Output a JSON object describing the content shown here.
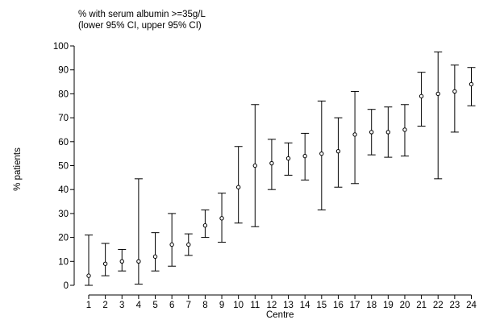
{
  "chart_data": {
    "type": "scatter",
    "title": "% with serum albumin >=35g/L",
    "subtitle": "(lower 95% CI, upper 95% CI)",
    "xlabel": "Centre",
    "ylabel": "% patients",
    "ylim": [
      0,
      100
    ],
    "yticks": [
      0,
      10,
      20,
      30,
      40,
      50,
      60,
      70,
      80,
      90,
      100
    ],
    "x": [
      "1",
      "2",
      "3",
      "4",
      "5",
      "6",
      "7",
      "8",
      "9",
      "10",
      "11",
      "12",
      "13",
      "14",
      "15",
      "16",
      "17",
      "18",
      "19",
      "20",
      "21",
      "22",
      "23",
      "24"
    ],
    "values": [
      4,
      9,
      10,
      10,
      12,
      17,
      17,
      25,
      28,
      41,
      50,
      51,
      53,
      54,
      55,
      56,
      63,
      64,
      64,
      65,
      79,
      80,
      81,
      84
    ],
    "lower": [
      0,
      4,
      6,
      0.5,
      6,
      8,
      12.5,
      20,
      18,
      26,
      24.5,
      40,
      46,
      44,
      31.5,
      41,
      42.5,
      54.5,
      53.5,
      54,
      66.5,
      44.5,
      64,
      75
    ],
    "upper": [
      21,
      17.5,
      15,
      44.5,
      22,
      30,
      21.5,
      31.5,
      38.5,
      58,
      75.5,
      61,
      59.5,
      63.5,
      77,
      70,
      81,
      73.5,
      74.5,
      75.5,
      89,
      97.5,
      92,
      91
    ],
    "grid": false,
    "legend": "none"
  }
}
